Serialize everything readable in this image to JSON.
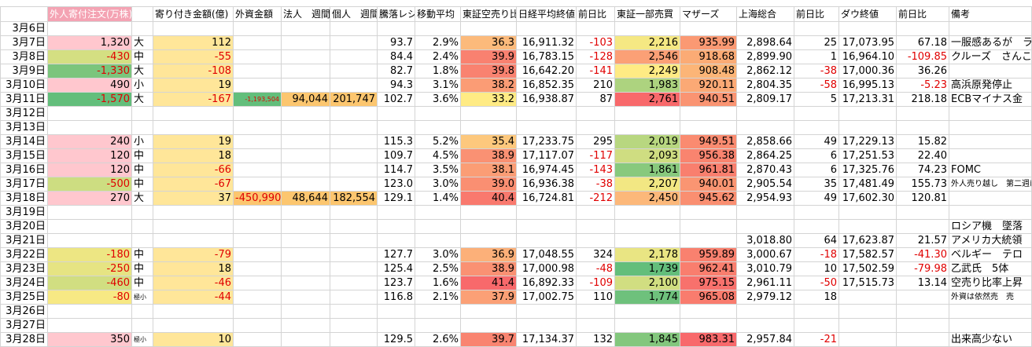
{
  "table": {
    "header": [
      null,
      "外人寄付注文(万株)",
      null,
      "寄り付き金額(億)",
      "外資金額　週間",
      "法人　週間",
      "個人　週間",
      "騰落レシオ",
      "移動平均",
      "東証空売り比率",
      "日経平均終値",
      "前日比",
      "東証一部売買",
      "マザーズ",
      "上海総合",
      "前日比",
      "ダウ終値",
      "前日比",
      "備考"
    ],
    "rows": [
      [
        "3月6日",
        null,
        null,
        null,
        null,
        null,
        null,
        null,
        null,
        null,
        null,
        null,
        null,
        null,
        null,
        null,
        null,
        null,
        null
      ],
      [
        "3月7日",
        "1,320",
        "大",
        "112",
        null,
        null,
        null,
        "93.7",
        "2.9%",
        "36.3",
        "16,911.32",
        "-103",
        "2,216",
        "935.99",
        "2,898.64",
        "25",
        "17,073.95",
        "67.18",
        "一服感あるが　ラ"
      ],
      [
        "3月8日",
        "-430",
        "中",
        "-55",
        null,
        null,
        null,
        "84.4",
        "2.4%",
        "39.9",
        "16,783.15",
        "-128",
        "2,546",
        "918.68",
        "2,899.90",
        "1",
        "16,964.10",
        "-109.85",
        "クルーズ　さんこ"
      ],
      [
        "3月9日",
        "-1,330",
        "大",
        "-108",
        null,
        null,
        null,
        "82.7",
        "1.8%",
        "39.8",
        "16,642.20",
        "-141",
        "2,249",
        "908.48",
        "2,862.12",
        "-38",
        "17,000.36",
        "36.26",
        null
      ],
      [
        "3月10日",
        "490",
        "小",
        "19",
        null,
        null,
        null,
        "94.3",
        "3.1%",
        "38.2",
        "16,852.35",
        "210",
        "1,983",
        "920.11",
        "2,804.35",
        "-58",
        "16,995.13",
        "-5.23",
        "高浜原発停止"
      ],
      [
        "3月11日",
        "-1,570",
        "大",
        "-167",
        "-1,193,504",
        "94,044",
        "201,747",
        "102.7",
        "3.6%",
        "33.2",
        "16,938.87",
        "87",
        "2,761",
        "940.51",
        "2,809.17",
        "5",
        "17,213.31",
        "218.18",
        "ECBマイナス金"
      ],
      [
        "3月12日",
        null,
        null,
        null,
        null,
        null,
        null,
        null,
        null,
        null,
        null,
        null,
        null,
        null,
        null,
        null,
        null,
        null,
        null
      ],
      [
        "3月13日",
        null,
        null,
        null,
        null,
        null,
        null,
        null,
        null,
        null,
        null,
        null,
        null,
        null,
        null,
        null,
        null,
        null,
        null
      ],
      [
        "3月14日",
        "240",
        "小",
        "19",
        null,
        null,
        null,
        "115.3",
        "5.2%",
        "35.4",
        "17,233.75",
        "295",
        "2,019",
        "949.51",
        "2,858.66",
        "49",
        "17,229.13",
        "15.82",
        null
      ],
      [
        "3月15日",
        "120",
        "中",
        "18",
        null,
        null,
        null,
        "109.7",
        "4.5%",
        "38.9",
        "17,117.07",
        "-117",
        "2,093",
        "956.38",
        "2,864.25",
        "6",
        "17,251.53",
        "22.40",
        null
      ],
      [
        "3月16日",
        "120",
        "中",
        "-66",
        null,
        null,
        null,
        "114.7",
        "3.5%",
        "38.1",
        "16,974.45",
        "-143",
        "1,861",
        "961.81",
        "2,870.43",
        "6",
        "17,325.76",
        "74.23",
        "FOMC"
      ],
      [
        "3月17日",
        "-500",
        "中",
        "-67",
        null,
        null,
        null,
        "123.0",
        "3.0%",
        "39.0",
        "16,936.38",
        "-38",
        "2,207",
        "940.01",
        "2,905.54",
        "35",
        "17,481.49",
        "155.73",
        "外人売り越し　第二週はプラ"
      ],
      [
        "3月18日",
        "270",
        "大",
        "37",
        "-450,990",
        "48,644",
        "182,554",
        "129.1",
        "1.4%",
        "40.4",
        "16,724.81",
        "-212",
        "2,450",
        "945.62",
        "2,954.93",
        "49",
        "17,602.30",
        "120.81",
        null
      ],
      [
        "3月19日",
        null,
        null,
        null,
        null,
        null,
        null,
        null,
        null,
        null,
        null,
        null,
        null,
        null,
        null,
        null,
        null,
        null,
        null
      ],
      [
        "3月20日",
        null,
        null,
        null,
        null,
        null,
        null,
        null,
        null,
        null,
        null,
        null,
        null,
        null,
        null,
        null,
        null,
        null,
        "ロシア機　墜落"
      ],
      [
        "3月21日",
        null,
        null,
        null,
        null,
        null,
        null,
        null,
        null,
        null,
        null,
        null,
        null,
        null,
        "3,018.80",
        "64",
        "17,623.87",
        "21.57",
        "アメリカ大統領"
      ],
      [
        "3月22日",
        "-180",
        "中",
        "-79",
        null,
        null,
        null,
        "127.7",
        "3.0%",
        "36.9",
        "17,048.55",
        "324",
        "2,178",
        "959.89",
        "3,000.67",
        "-18",
        "17,582.57",
        "-41.30",
        "ベルギー　テロ"
      ],
      [
        "3月23日",
        "-250",
        "中",
        "18",
        null,
        null,
        null,
        "125.4",
        "2.5%",
        "38.9",
        "17,000.98",
        "-48",
        "1,739",
        "962.41",
        "3,010.79",
        "10",
        "17,502.59",
        "-79.98",
        "乙武氏　5体"
      ],
      [
        "3月24日",
        "-460",
        "中",
        "-46",
        null,
        null,
        null,
        "123.7",
        "1.6%",
        "41.4",
        "16,892.33",
        "-109",
        "2,100",
        "975.15",
        "2,961.11",
        "-50",
        "17,515.73",
        "13.14",
        "空売り比率上昇"
      ],
      [
        "3月25日",
        "-80",
        "極小",
        "-44",
        null,
        null,
        null,
        "116.8",
        "2.1%",
        "37.9",
        "17,002.75",
        "110",
        "1,774",
        "965.08",
        "2,979.12",
        "18",
        null,
        null,
        "外資は依然売　売"
      ],
      [
        "3月26日",
        null,
        null,
        null,
        null,
        null,
        null,
        null,
        null,
        null,
        null,
        null,
        null,
        null,
        null,
        null,
        null,
        null,
        null
      ],
      [
        "3月27日",
        null,
        null,
        null,
        null,
        null,
        null,
        null,
        null,
        null,
        null,
        null,
        null,
        null,
        null,
        null,
        null,
        null,
        null
      ],
      [
        "3月28日",
        "350",
        "極小",
        "10",
        null,
        null,
        null,
        "129.5",
        "2.6%",
        "39.7",
        "17,134.37",
        "132",
        "1,845",
        "983.31",
        "2,957.84",
        "-21",
        null,
        null,
        "出来高少ない"
      ]
    ]
  }
}
